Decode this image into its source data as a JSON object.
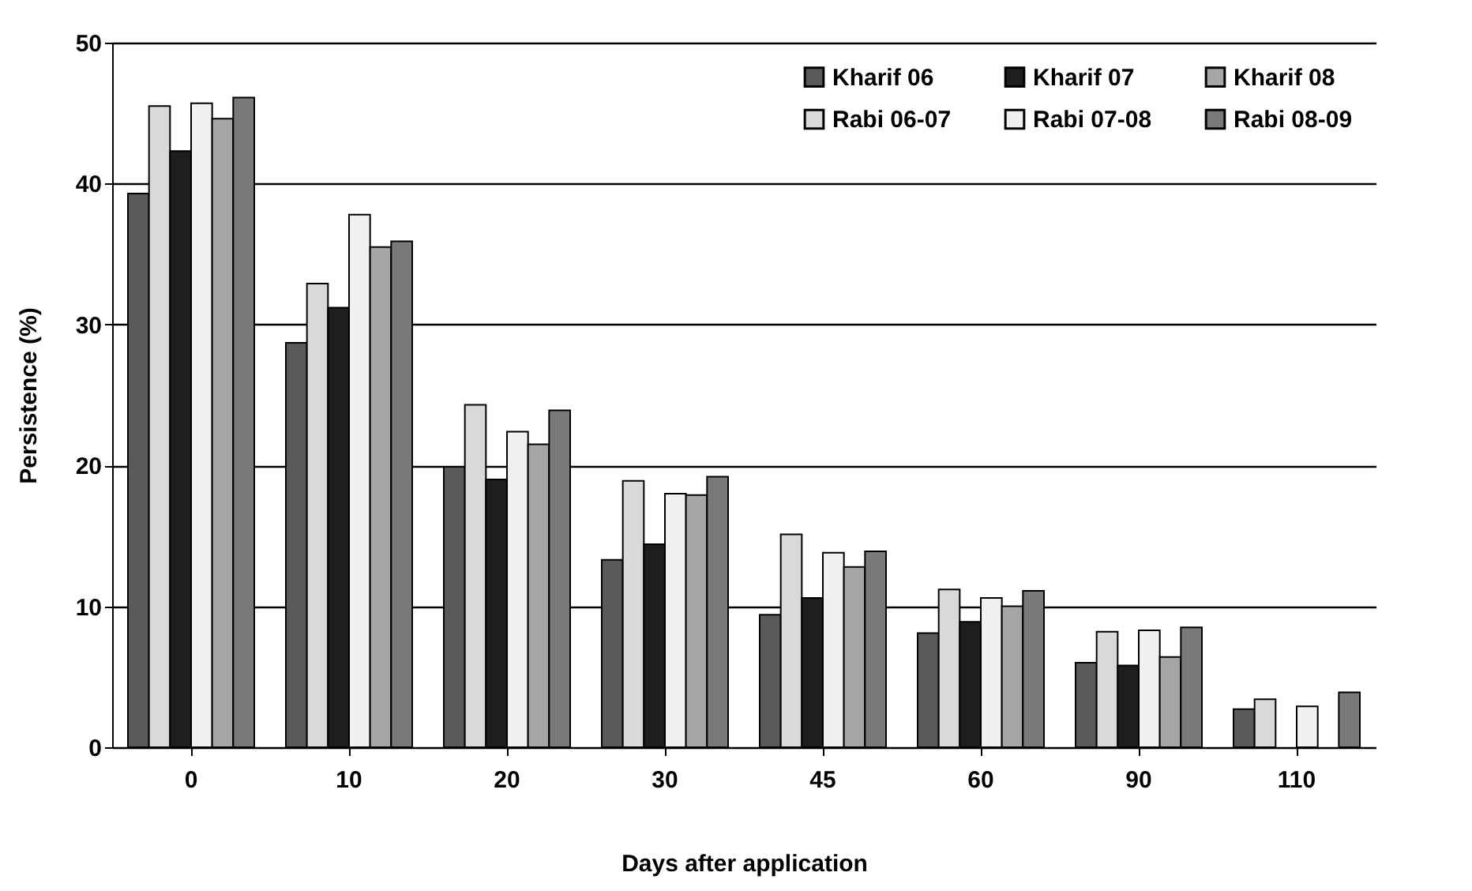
{
  "chart_data": {
    "type": "bar",
    "xlabel": "Days after application",
    "ylabel": "Persistence  (%)",
    "categories": [
      "0",
      "10",
      "20",
      "30",
      "45",
      "60",
      "90",
      "110"
    ],
    "series": [
      {
        "name": "Kharif 06",
        "color": "#5a5a5a",
        "values": [
          39.3,
          28.7,
          19.9,
          13.3,
          9.4,
          8.1,
          6.0,
          2.7
        ]
      },
      {
        "name": "Rabi 06-07",
        "color": "#d9d9d9",
        "values": [
          45.5,
          32.9,
          24.3,
          18.9,
          15.1,
          11.2,
          8.2,
          3.4
        ]
      },
      {
        "name": "Kharif 07",
        "color": "#1e1e1e",
        "values": [
          42.3,
          31.2,
          19.0,
          14.4,
          10.6,
          8.9,
          5.8,
          null
        ]
      },
      {
        "name": "Rabi 07-08",
        "color": "#f0f0f0",
        "values": [
          45.7,
          37.8,
          22.4,
          18.0,
          13.8,
          10.6,
          8.3,
          2.9
        ]
      },
      {
        "name": "Kharif 08",
        "color": "#a6a6a6",
        "values": [
          44.6,
          35.5,
          21.5,
          17.9,
          12.8,
          10.0,
          6.4,
          null
        ]
      },
      {
        "name": "Rabi 08-09",
        "color": "#7a7a7a",
        "values": [
          46.1,
          35.9,
          23.9,
          19.2,
          13.9,
          11.1,
          8.5,
          3.9
        ]
      }
    ],
    "ylim": [
      0,
      50
    ],
    "yticks": [
      0,
      10,
      20,
      30,
      40,
      50
    ],
    "grid": "y",
    "legend": "top right"
  }
}
